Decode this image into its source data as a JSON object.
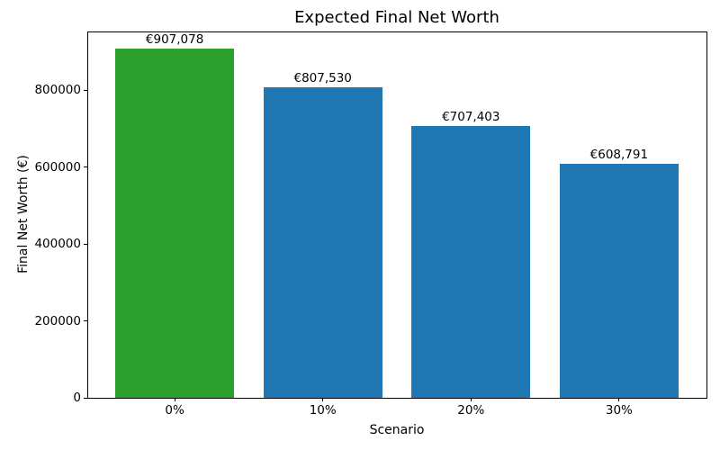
{
  "chart_data": {
    "type": "bar",
    "title": "Expected Final Net Worth",
    "xlabel": "Scenario",
    "ylabel": "Final Net Worth (€)",
    "categories": [
      "0%",
      "10%",
      "20%",
      "30%"
    ],
    "values": [
      907078,
      807530,
      707403,
      608791
    ],
    "value_labels": [
      "€907,078",
      "€807,530",
      "€707,403",
      "€608,791"
    ],
    "bar_colors": [
      "#2ca02c",
      "#1f77b4",
      "#1f77b4",
      "#1f77b4"
    ],
    "ylim": [
      0,
      952432
    ],
    "yticks": [
      0,
      200000,
      400000,
      600000,
      800000
    ],
    "ytick_labels": [
      "0",
      "200000",
      "400000",
      "600000",
      "800000"
    ],
    "bar_width_fraction": 0.8,
    "grid": false,
    "legend_position": "none",
    "background_color": "#ffffff",
    "spine_color": "#000000",
    "text_color": "#000000"
  }
}
